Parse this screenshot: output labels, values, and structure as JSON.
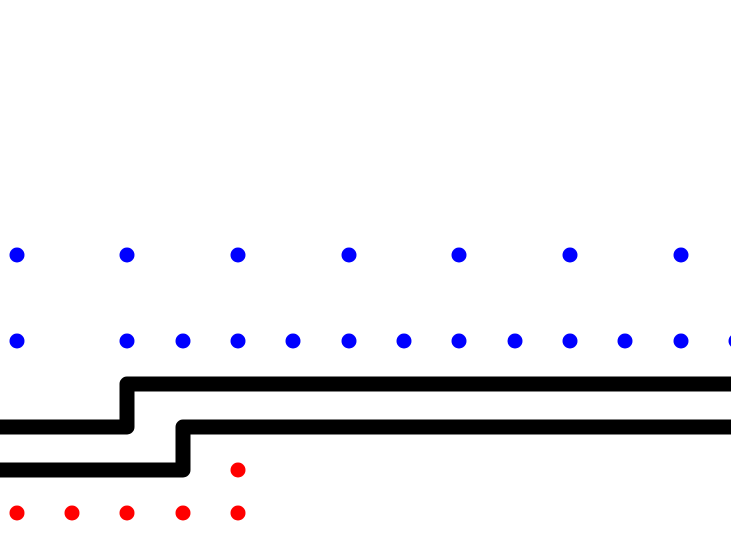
{
  "colors": {
    "background": "#ffffff",
    "top_dot": "#0000ff",
    "bottom_dot": "#ff0000",
    "wall": "#000000"
  },
  "dot_rows": [
    {
      "name": "top-sparse-row",
      "color_key": "top_dot",
      "count": 7
    },
    {
      "name": "top-dense-row",
      "color_key": "top_dot",
      "count": 13
    },
    {
      "name": "bottom-single-row",
      "color_key": "bottom_dot",
      "count": 1
    },
    {
      "name": "bottom-row",
      "color_key": "bottom_dot",
      "count": 5
    }
  ],
  "walls": [
    {
      "name": "upper-barrier",
      "shape": "step"
    },
    {
      "name": "lower-barrier",
      "shape": "step"
    }
  ]
}
